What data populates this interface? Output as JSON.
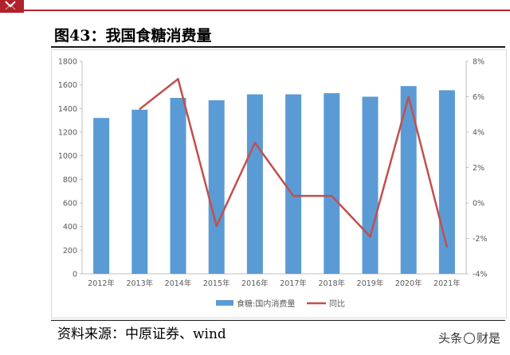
{
  "header": {
    "figure_title": "图43：我国食糖消费量"
  },
  "chart_data": {
    "type": "bar",
    "categories": [
      "2012年",
      "2013年",
      "2014年",
      "2015年",
      "2016年",
      "2017年",
      "2018年",
      "2019年",
      "2020年",
      "2021年"
    ],
    "series": [
      {
        "name": "食糖:国内消费量",
        "type": "bar",
        "axis": "left",
        "color": "#5b9bd5",
        "values": [
          1320,
          1390,
          1490,
          1470,
          1520,
          1520,
          1530,
          1500,
          1590,
          1555
        ]
      },
      {
        "name": "同比",
        "type": "line",
        "axis": "right",
        "color": "#c0504d",
        "unit": "%",
        "values": [
          null,
          5.3,
          7.0,
          -1.3,
          3.4,
          0.4,
          0.4,
          -1.9,
          6.0,
          -2.5
        ]
      }
    ],
    "y_left": {
      "min": 0,
      "max": 1800,
      "step": 200,
      "ticks": [
        "0",
        "200",
        "400",
        "600",
        "800",
        "1000",
        "1200",
        "1400",
        "1600",
        "1800"
      ]
    },
    "y_right": {
      "min": -4,
      "max": 8,
      "step": 2,
      "ticks": [
        "-4%",
        "-2%",
        "0%",
        "2%",
        "4%",
        "6%",
        "8%"
      ]
    },
    "grid": false,
    "legend_position": "bottom"
  },
  "footer": {
    "source": "资料来源：中原证券、wind",
    "watermark_left": "头条",
    "watermark_right": "财是"
  },
  "colors": {
    "brand_red": "#b1212b",
    "bar": "#5b9bd5",
    "line": "#c0504d"
  }
}
